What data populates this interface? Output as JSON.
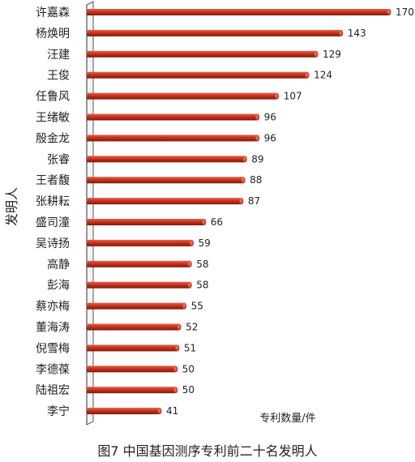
{
  "chart_data": {
    "type": "bar",
    "orientation": "horizontal",
    "categories": [
      "许嘉森",
      "杨焕明",
      "汪建",
      "王俊",
      "任鲁风",
      "王绪敏",
      "殷金龙",
      "张睿",
      "王者馥",
      "张耕耘",
      "盛司潼",
      "吴诗扬",
      "高静",
      "彭海",
      "蔡亦梅",
      "董海涛",
      "倪雪梅",
      "李德葆",
      "陆祖宏",
      "李宁"
    ],
    "values": [
      170,
      143,
      129,
      124,
      107,
      96,
      96,
      89,
      88,
      87,
      66,
      59,
      58,
      58,
      55,
      52,
      51,
      50,
      50,
      41
    ],
    "ylabel": "发明人",
    "xlabel": "专利数量/件",
    "xlim": [
      0,
      170
    ],
    "grid": false,
    "bar_color": "#c8321e"
  },
  "caption": "图7  中国基因测序专利前二十名发明人"
}
